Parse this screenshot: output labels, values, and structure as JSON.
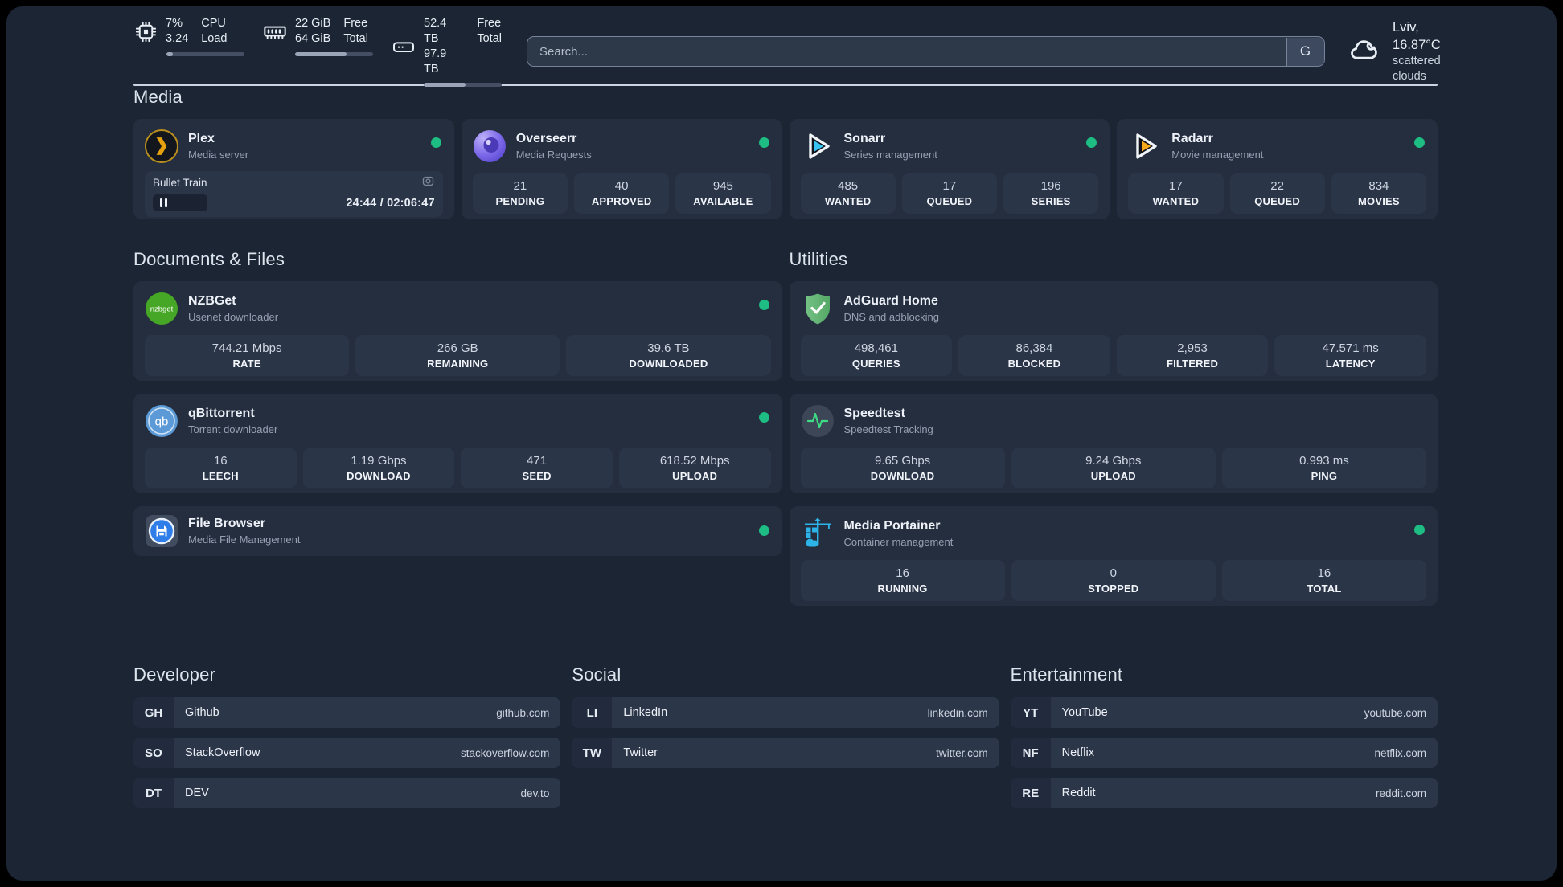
{
  "theme": {
    "background": "#1c2534",
    "card_background": "#242e3f",
    "stat_box_background": "#2b3548",
    "status_online_green": "#1dbd84",
    "divider_color": "#ccd4e0",
    "plex_amber": "#e5a00d",
    "sonarr_blue": "#36c3f1",
    "radarr_amber": "#f6a81c",
    "portainer_blue": "#2cb4e8",
    "speedtest_green": "#3ddc84"
  },
  "system_stats": [
    {
      "icon": "cpu-icon",
      "v1": "7%",
      "v2": "3.24",
      "l1": "CPU",
      "l2": "Load",
      "progress_pct": 8
    },
    {
      "icon": "ram-icon",
      "v1": "22 GiB",
      "v2": "64 GiB",
      "l1": "Free",
      "l2": "Total",
      "progress_pct": 66
    },
    {
      "icon": "disk-icon",
      "v1": "52.4 TB",
      "v2": "97.9 TB",
      "l1": "Free",
      "l2": "Total",
      "progress_pct": 54
    }
  ],
  "search": {
    "placeholder": "Search...",
    "button_label": "G"
  },
  "weather": {
    "location": "Lviv, 16.87°C",
    "condition": "scattered clouds",
    "icon": "cloud-icon"
  },
  "sections": {
    "media": "Media",
    "documents": "Documents & Files",
    "utilities": "Utilities",
    "developer": "Developer",
    "social": "Social",
    "entertainment": "Entertainment"
  },
  "apps": {
    "plex": {
      "name": "Plex",
      "subtitle": "Media server",
      "online": true,
      "now_playing": {
        "title": "Bullet Train",
        "time": "24:44 / 02:06:47",
        "progress_pct": 19.5,
        "state": "paused"
      }
    },
    "overseerr": {
      "name": "Overseerr",
      "subtitle": "Media Requests",
      "online": true,
      "stats": [
        {
          "value": "21",
          "label": "PENDING"
        },
        {
          "value": "40",
          "label": "APPROVED"
        },
        {
          "value": "945",
          "label": "AVAILABLE"
        }
      ]
    },
    "sonarr": {
      "name": "Sonarr",
      "subtitle": "Series management",
      "online": true,
      "stats": [
        {
          "value": "485",
          "label": "WANTED"
        },
        {
          "value": "17",
          "label": "QUEUED"
        },
        {
          "value": "196",
          "label": "SERIES"
        }
      ]
    },
    "radarr": {
      "name": "Radarr",
      "subtitle": "Movie management",
      "online": true,
      "stats": [
        {
          "value": "17",
          "label": "WANTED"
        },
        {
          "value": "22",
          "label": "QUEUED"
        },
        {
          "value": "834",
          "label": "MOVIES"
        }
      ]
    },
    "nzbget": {
      "name": "NZBGet",
      "subtitle": "Usenet downloader",
      "online": true,
      "stats": [
        {
          "value": "744.21 Mbps",
          "label": "RATE"
        },
        {
          "value": "266 GB",
          "label": "REMAINING"
        },
        {
          "value": "39.6 TB",
          "label": "DOWNLOADED"
        }
      ]
    },
    "qbittorrent": {
      "name": "qBittorrent",
      "subtitle": "Torrent downloader",
      "online": true,
      "stats": [
        {
          "value": "16",
          "label": "LEECH"
        },
        {
          "value": "1.19 Gbps",
          "label": "DOWNLOAD"
        },
        {
          "value": "471",
          "label": "SEED"
        },
        {
          "value": "618.52 Mbps",
          "label": "UPLOAD"
        }
      ]
    },
    "filebrowser": {
      "name": "File Browser",
      "subtitle": "Media File Management",
      "online": true
    },
    "adguard": {
      "name": "AdGuard Home",
      "subtitle": "DNS and adblocking",
      "stats": [
        {
          "value": "498,461",
          "label": "QUERIES"
        },
        {
          "value": "86,384",
          "label": "BLOCKED"
        },
        {
          "value": "2,953",
          "label": "FILTERED"
        },
        {
          "value": "47.571 ms",
          "label": "LATENCY"
        }
      ]
    },
    "speedtest": {
      "name": "Speedtest",
      "subtitle": "Speedtest Tracking",
      "stats": [
        {
          "value": "9.65 Gbps",
          "label": "DOWNLOAD"
        },
        {
          "value": "9.24 Gbps",
          "label": "UPLOAD"
        },
        {
          "value": "0.993 ms",
          "label": "PING"
        }
      ]
    },
    "portainer": {
      "name": "Media Portainer",
      "subtitle": "Container management",
      "online": true,
      "stats": [
        {
          "value": "16",
          "label": "RUNNING"
        },
        {
          "value": "0",
          "label": "STOPPED"
        },
        {
          "value": "16",
          "label": "TOTAL"
        }
      ]
    }
  },
  "bookmarks": {
    "developer": [
      {
        "abbr": "GH",
        "name": "Github",
        "url": "github.com"
      },
      {
        "abbr": "SO",
        "name": "StackOverflow",
        "url": "stackoverflow.com"
      },
      {
        "abbr": "DT",
        "name": "DEV",
        "url": "dev.to"
      }
    ],
    "social": [
      {
        "abbr": "LI",
        "name": "LinkedIn",
        "url": "linkedin.com"
      },
      {
        "abbr": "TW",
        "name": "Twitter",
        "url": "twitter.com"
      }
    ],
    "entertainment": [
      {
        "abbr": "YT",
        "name": "YouTube",
        "url": "youtube.com"
      },
      {
        "abbr": "NF",
        "name": "Netflix",
        "url": "netflix.com"
      },
      {
        "abbr": "RE",
        "name": "Reddit",
        "url": "reddit.com"
      }
    ]
  }
}
